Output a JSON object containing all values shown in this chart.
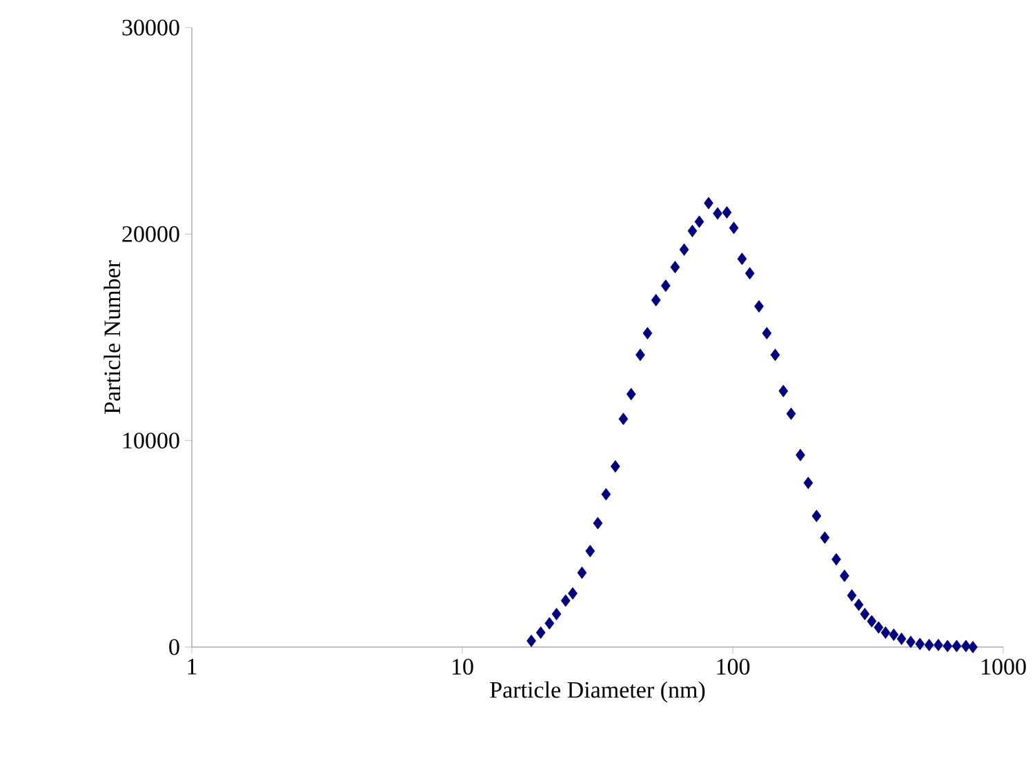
{
  "chart_data": {
    "type": "scatter",
    "xlabel": "Particle Diameter (nm)",
    "ylabel": "Particle Number",
    "log": "x",
    "marker": "diamond",
    "grid": false,
    "xlim": [
      1,
      1000
    ],
    "xticks": [
      1,
      10,
      100,
      1000
    ],
    "ylim": [
      0,
      30000
    ],
    "yticks": [
      0,
      10000,
      20000,
      30000
    ],
    "series": [
      {
        "color": "#000080",
        "x": [
          18.0,
          19.5,
          21.0,
          22.3,
          24.1,
          25.6,
          27.7,
          29.7,
          31.7,
          34.0,
          36.8,
          39.4,
          42.1,
          45.5,
          48.4,
          52.0,
          56.5,
          61.2,
          66.1,
          70.9,
          75.2,
          81.4,
          87.9,
          95.1,
          100.9,
          108.2,
          115.6,
          125.0,
          133.6,
          143.5,
          153.8,
          164.3,
          177.8,
          190.1,
          204.0,
          218.9,
          241.3,
          258.8,
          275.5,
          292.2,
          307.7,
          326.4,
          346.0,
          367.2,
          393.8,
          420.7,
          455.0,
          492.0,
          532.1,
          575.4,
          622.3,
          672.5,
          727.8,
          772.3
        ],
        "values": [
          300,
          700,
          1150,
          1600,
          2250,
          2600,
          3600,
          4650,
          6000,
          7400,
          8750,
          11050,
          12250,
          14150,
          15200,
          16800,
          17500,
          18400,
          19250,
          20150,
          20600,
          21500,
          21000,
          21050,
          20300,
          18800,
          18100,
          16500,
          15200,
          14150,
          12400,
          11300,
          9300,
          7950,
          6350,
          5300,
          4250,
          3450,
          2500,
          2050,
          1600,
          1250,
          950,
          700,
          600,
          400,
          250,
          150,
          100,
          100,
          50,
          50,
          50,
          0
        ]
      }
    ]
  }
}
